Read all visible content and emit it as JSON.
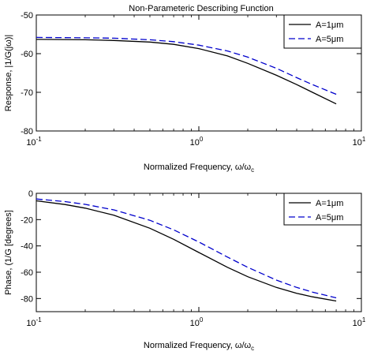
{
  "figure": {
    "title": "Non-Parameteric Describing Function"
  },
  "chart_data": [
    {
      "type": "line",
      "title": "Non-Parameteric Describing Function",
      "xscale": "log",
      "xlim": [
        0.1,
        10
      ],
      "ylim": [
        -80,
        -50
      ],
      "xticks": [
        0.1,
        1,
        10
      ],
      "xtick_labels": [
        {
          "base": "10",
          "exp": "-1"
        },
        {
          "base": "10",
          "exp": "0"
        },
        {
          "base": "10",
          "exp": "1"
        }
      ],
      "yticks": [
        -80,
        -70,
        -60,
        -50
      ],
      "ytick_labels": [
        "-80",
        "-70",
        "-60",
        "-50"
      ],
      "xlabel": {
        "text": "Normalized Frequency, ω/ω",
        "subscript": "c"
      },
      "ylabel": "Response, |1/G(jω)|",
      "grid": false,
      "legend_position": "top-right",
      "series": [
        {
          "name": "A=1μm",
          "color": "#000000",
          "dash": "solid",
          "x": [
            0.1,
            0.2,
            0.3,
            0.5,
            0.7,
            1.0,
            1.5,
            2.0,
            3.0,
            4.0,
            5.0,
            7.0
          ],
          "y": [
            -56.3,
            -56.4,
            -56.6,
            -57.0,
            -57.6,
            -58.7,
            -60.6,
            -62.5,
            -65.6,
            -68.0,
            -70.0,
            -73.0
          ]
        },
        {
          "name": "A=5μm",
          "color": "#0000cc",
          "dash": "dashed",
          "x": [
            0.1,
            0.2,
            0.3,
            0.5,
            0.7,
            1.0,
            1.5,
            2.0,
            3.0,
            4.0,
            5.0,
            7.0
          ],
          "y": [
            -55.8,
            -55.9,
            -56.0,
            -56.4,
            -56.9,
            -57.8,
            -59.3,
            -60.9,
            -63.8,
            -66.2,
            -68.0,
            -70.5
          ]
        }
      ]
    },
    {
      "type": "line",
      "title": "",
      "xscale": "log",
      "xlim": [
        0.1,
        10
      ],
      "ylim": [
        -90,
        0
      ],
      "xticks": [
        0.1,
        1,
        10
      ],
      "xtick_labels": [
        {
          "base": "10",
          "exp": "-1"
        },
        {
          "base": "10",
          "exp": "0"
        },
        {
          "base": "10",
          "exp": "1"
        }
      ],
      "yticks": [
        -80,
        -60,
        -40,
        -20,
        0
      ],
      "ytick_labels": [
        "-80",
        "-60",
        "-40",
        "-20",
        "0"
      ],
      "xlabel": {
        "text": "Normalized Frequency, ω/ω",
        "subscript": "c"
      },
      "ylabel": "Phase, (1/G [degrees]",
      "grid": false,
      "legend_position": "top-right",
      "series": [
        {
          "name": "A=1μm",
          "color": "#000000",
          "dash": "solid",
          "x": [
            0.1,
            0.15,
            0.2,
            0.3,
            0.5,
            0.7,
            1.0,
            1.5,
            2.0,
            3.0,
            4.0,
            5.0,
            7.0
          ],
          "y": [
            -5.7,
            -8.5,
            -11.3,
            -16.7,
            -26.6,
            -35.0,
            -45.0,
            -56.3,
            -63.4,
            -71.6,
            -76.0,
            -78.7,
            -81.9
          ]
        },
        {
          "name": "A=5μm",
          "color": "#0000cc",
          "dash": "dashed",
          "x": [
            0.1,
            0.15,
            0.2,
            0.3,
            0.5,
            0.7,
            1.0,
            1.5,
            2.0,
            3.0,
            4.0,
            5.0,
            7.0
          ],
          "y": [
            -4.3,
            -6.3,
            -8.4,
            -12.6,
            -20.5,
            -27.8,
            -37.0,
            -48.5,
            -56.3,
            -66.0,
            -71.6,
            -75.1,
            -79.5
          ]
        }
      ]
    }
  ]
}
